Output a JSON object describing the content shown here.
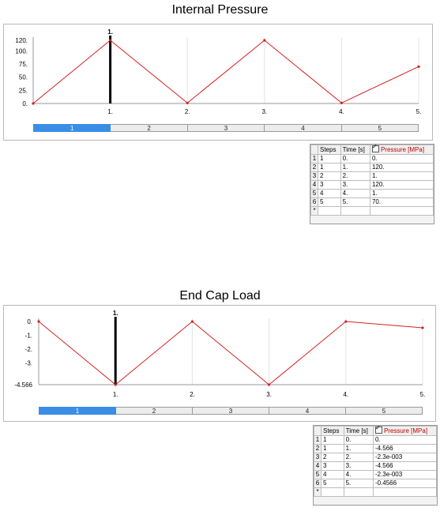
{
  "charts": [
    {
      "title": "Internal Pressure",
      "chart_data": {
        "type": "line",
        "x": [
          0,
          1,
          2,
          3,
          4,
          5
        ],
        "series": [
          {
            "values": [
              0,
              120,
              1,
              120,
              1,
              70
            ],
            "color": "#d42020"
          }
        ],
        "xticks": [
          "1.",
          "2.",
          "3.",
          "4.",
          "5."
        ],
        "yticks": [
          "120.",
          "100.",
          "75.",
          "50.",
          "25.",
          "0."
        ],
        "ytick_values": [
          120,
          100,
          75,
          50,
          25,
          0
        ],
        "ylim": [
          0,
          120
        ],
        "xlim": [
          0,
          5
        ],
        "marker": {
          "x": 1,
          "label": "1."
        }
      },
      "steps": {
        "labels": [
          "1",
          "2",
          "3",
          "4",
          "5"
        ],
        "active": 0
      },
      "table": {
        "headers": {
          "steps": "Steps",
          "time": "Time [s]",
          "value": "Pressure [MPa]"
        },
        "rows": [
          {
            "n": "1",
            "step": "1",
            "time": "0.",
            "value": "0."
          },
          {
            "n": "2",
            "step": "1",
            "time": "1.",
            "value": "120."
          },
          {
            "n": "3",
            "step": "2",
            "time": "2.",
            "value": "1."
          },
          {
            "n": "4",
            "step": "3",
            "time": "3.",
            "value": "120."
          },
          {
            "n": "5",
            "step": "4",
            "time": "4.",
            "value": "1."
          },
          {
            "n": "6",
            "step": "5",
            "time": "5.",
            "value": "70."
          }
        ],
        "new_row": "*"
      }
    },
    {
      "title": "End Cap Load",
      "chart_data": {
        "type": "line",
        "x": [
          0,
          1,
          2,
          3,
          4,
          5
        ],
        "series": [
          {
            "values": [
              0,
              -4.566,
              -0.0023,
              -4.566,
              -0.0023,
              -0.4566
            ],
            "color": "#d42020"
          }
        ],
        "xticks": [
          "1.",
          "2.",
          "3.",
          "4.",
          "5."
        ],
        "yticks": [
          "0.",
          "-1.",
          "-2.",
          "-3.",
          "-4.566"
        ],
        "ytick_values": [
          0,
          -1,
          -2,
          -3,
          -4.566
        ],
        "ylim": [
          -4.566,
          0
        ],
        "xlim": [
          0,
          5
        ],
        "marker": {
          "x": 1,
          "label": "1."
        }
      },
      "steps": {
        "labels": [
          "1",
          "2",
          "3",
          "4",
          "5"
        ],
        "active": 0
      },
      "table": {
        "headers": {
          "steps": "Steps",
          "time": "Time [s]",
          "value": "Pressure [MPa]"
        },
        "rows": [
          {
            "n": "1",
            "step": "1",
            "time": "0.",
            "value": "0."
          },
          {
            "n": "2",
            "step": "1",
            "time": "1.",
            "value": "-4.566"
          },
          {
            "n": "3",
            "step": "2",
            "time": "2.",
            "value": "-2.3e-003"
          },
          {
            "n": "4",
            "step": "3",
            "time": "3.",
            "value": "-4.566"
          },
          {
            "n": "5",
            "step": "4",
            "time": "4.",
            "value": "-2.3e-003"
          },
          {
            "n": "6",
            "step": "5",
            "time": "5.",
            "value": "-0.4566"
          }
        ],
        "new_row": "*"
      }
    }
  ]
}
